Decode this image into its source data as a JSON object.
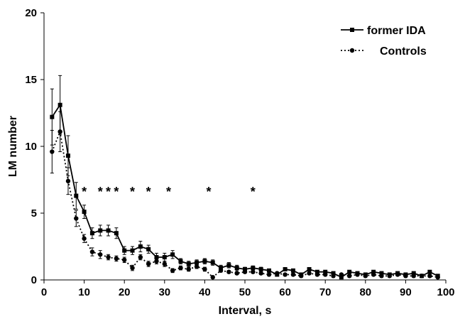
{
  "chart_data": {
    "type": "line",
    "xlabel": "Interval, s",
    "ylabel": "LM number",
    "xlim": [
      0,
      100
    ],
    "ylim": [
      0,
      20
    ],
    "xticks": [
      "0",
      "10",
      "20",
      "30",
      "40",
      "50",
      "60",
      "70",
      "80",
      "90",
      "100"
    ],
    "yticks": [
      "0",
      "5",
      "10",
      "15",
      "20"
    ],
    "grid": false,
    "legend_position": "top-right",
    "series": [
      {
        "name": "former IDA",
        "line": "solid",
        "marker": "square",
        "x": [
          2,
          4,
          6,
          8,
          10,
          12,
          14,
          16,
          18,
          20,
          22,
          24,
          26,
          28,
          30,
          32,
          34,
          36,
          38,
          40,
          42,
          44,
          46,
          48,
          50,
          52,
          54,
          56,
          58,
          60,
          62,
          64,
          66,
          68,
          70,
          72,
          74,
          76,
          78,
          80,
          82,
          84,
          86,
          88,
          90,
          92,
          94,
          96,
          98
        ],
        "y": [
          12.2,
          13.1,
          9.3,
          6.3,
          5.1,
          3.5,
          3.7,
          3.7,
          3.5,
          2.2,
          2.2,
          2.5,
          2.3,
          1.7,
          1.7,
          1.9,
          1.4,
          1.2,
          1.3,
          1.4,
          1.3,
          0.9,
          1.1,
          0.9,
          0.8,
          0.9,
          0.8,
          0.7,
          0.4,
          0.8,
          0.7,
          0.4,
          0.8,
          0.6,
          0.6,
          0.5,
          0.2,
          0.6,
          0.5,
          0.4,
          0.6,
          0.5,
          0.4,
          0.5,
          0.4,
          0.5,
          0.3,
          0.6,
          0.3
        ],
        "error": [
          2.1,
          2.2,
          1.5,
          1.0,
          0.5,
          0.4,
          0.4,
          0.4,
          0.4,
          0.3,
          0.3,
          0.4,
          0.3,
          0.3,
          0.3,
          0.3,
          0.2,
          0.2,
          0.2,
          0.2,
          0.2,
          0.2,
          0.2,
          0.2,
          0.15,
          0.15,
          0.15,
          0.1,
          0.1,
          0.1,
          0.1,
          0.1,
          0.1,
          0.1,
          0.1,
          0.1,
          0.1,
          0.1,
          0.1,
          0.1,
          0.1,
          0.1,
          0.1,
          0.1,
          0.1,
          0.1,
          0.1,
          0.1,
          0.1
        ]
      },
      {
        "name": "Controls",
        "line": "dotted",
        "marker": "circle",
        "x": [
          2,
          4,
          6,
          8,
          10,
          12,
          14,
          16,
          18,
          20,
          22,
          24,
          26,
          28,
          30,
          32,
          34,
          36,
          38,
          40,
          42,
          44,
          46,
          48,
          50,
          52,
          54,
          56,
          58,
          60,
          62,
          64,
          66,
          68,
          70,
          72,
          74,
          76,
          78,
          80,
          82,
          84,
          86,
          88,
          90,
          92,
          94,
          96,
          98
        ],
        "y": [
          9.6,
          11.1,
          7.4,
          4.6,
          3.1,
          2.1,
          1.9,
          1.7,
          1.6,
          1.5,
          0.9,
          1.7,
          1.2,
          1.4,
          1.2,
          0.7,
          0.9,
          0.8,
          1.0,
          0.8,
          0.2,
          0.7,
          0.6,
          0.5,
          0.6,
          0.6,
          0.5,
          0.4,
          0.5,
          0.4,
          0.4,
          0.3,
          0.5,
          0.4,
          0.4,
          0.3,
          0.4,
          0.3,
          0.4,
          0.3,
          0.4,
          0.3,
          0.3,
          0.4,
          0.3,
          0.3,
          0.3,
          0.3,
          0.2
        ],
        "error": [
          1.6,
          1.5,
          1.0,
          0.6,
          0.3,
          0.3,
          0.3,
          0.2,
          0.2,
          0.2,
          0.2,
          0.2,
          0.2,
          0.2,
          0.2,
          0.15,
          0.15,
          0.15,
          0.15,
          0.15,
          0.1,
          0.1,
          0.1,
          0.1,
          0.1,
          0.1,
          0.1,
          0.1,
          0.1,
          0.1,
          0.1,
          0.1,
          0.1,
          0.1,
          0.1,
          0.1,
          0.1,
          0.1,
          0.1,
          0.1,
          0.1,
          0.1,
          0.1,
          0.1,
          0.1,
          0.1,
          0.1,
          0.1,
          0.1
        ]
      }
    ],
    "annotations": [
      {
        "text": "*",
        "x": 10,
        "y": 6.8
      },
      {
        "text": "*",
        "x": 14,
        "y": 6.8
      },
      {
        "text": "*",
        "x": 16,
        "y": 6.8
      },
      {
        "text": "*",
        "x": 18,
        "y": 6.8
      },
      {
        "text": "*",
        "x": 22,
        "y": 6.8
      },
      {
        "text": "*",
        "x": 26,
        "y": 6.8
      },
      {
        "text": "*",
        "x": 31,
        "y": 6.8
      },
      {
        "text": "*",
        "x": 41,
        "y": 6.8
      },
      {
        "text": "*",
        "x": 52,
        "y": 6.8
      }
    ]
  }
}
